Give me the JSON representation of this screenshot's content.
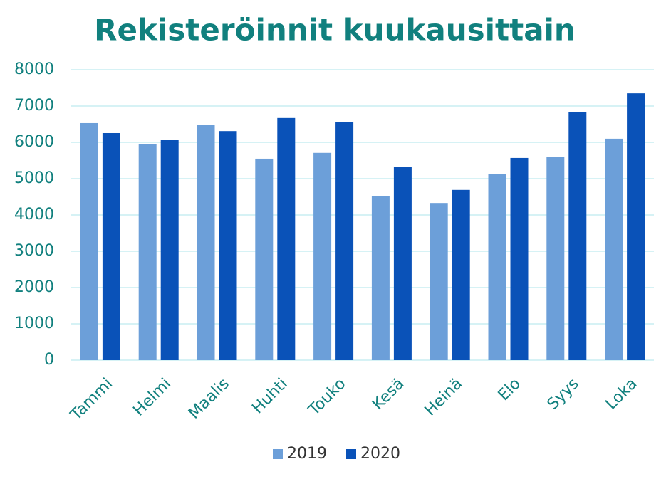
{
  "chart_data": {
    "type": "bar",
    "title": "Rekisteröinnit kuukausittain",
    "categories": [
      "Tammi",
      "Helmi",
      "Maalis",
      "Huhti",
      "Touko",
      "Kesä",
      "Heinä",
      "Elo",
      "Syys",
      "Loka"
    ],
    "series": [
      {
        "name": "2019",
        "color": "#6c9fd9",
        "values": [
          6530,
          5960,
          6490,
          5550,
          5710,
          4510,
          4330,
          5120,
          5590,
          6100
        ]
      },
      {
        "name": "2020",
        "color": "#0a52b8",
        "values": [
          6255,
          6060,
          6310,
          6670,
          6550,
          5330,
          4690,
          5570,
          6840,
          7350
        ]
      }
    ],
    "ylim": [
      0,
      8000
    ],
    "yticks": [
      0,
      1000,
      2000,
      3000,
      4000,
      5000,
      6000,
      7000,
      8000
    ],
    "grid": true,
    "legend": "bottom"
  }
}
